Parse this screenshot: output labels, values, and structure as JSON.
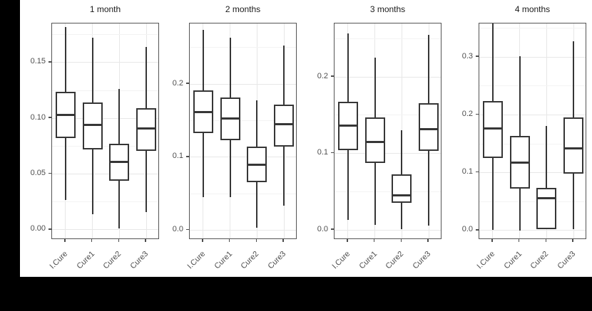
{
  "figure": {
    "outer_background": "#000000",
    "panel_background": "#ffffff",
    "panel_border_color": "#555555",
    "box_stroke_color": "#363636",
    "grid_major_color": "#e7e7e7",
    "grid_minor_color": "#f3f3f3",
    "axis_text_color": "#4d4d4d",
    "title_color": "#1a1a1a"
  },
  "chart_data": [
    {
      "type": "boxplot",
      "title": "1 month",
      "categories": [
        "I.Cure",
        "Cure1",
        "Cure2",
        "Cure3"
      ],
      "ytick_values": [
        0.0,
        0.05,
        0.1,
        0.15
      ],
      "ytick_labels": [
        "0.00",
        "0.05",
        "0.10",
        "0.15"
      ],
      "minor_ticks": [
        0.025,
        0.075,
        0.125,
        0.175
      ],
      "ylim": [
        -0.009,
        0.185
      ],
      "grid": true,
      "boxes": [
        {
          "category": "I.Cure",
          "whisker_low": 0.027,
          "q1": 0.082,
          "median": 0.103,
          "q3": 0.124,
          "whisker_high": 0.182
        },
        {
          "category": "Cure1",
          "whisker_low": 0.014,
          "q1": 0.072,
          "median": 0.094,
          "q3": 0.114,
          "whisker_high": 0.172
        },
        {
          "category": "Cure2",
          "whisker_low": 0.001,
          "q1": 0.044,
          "median": 0.061,
          "q3": 0.077,
          "whisker_high": 0.126
        },
        {
          "category": "Cure3",
          "whisker_low": 0.016,
          "q1": 0.071,
          "median": 0.091,
          "q3": 0.109,
          "whisker_high": 0.164
        }
      ]
    },
    {
      "type": "boxplot",
      "title": "2 months",
      "categories": [
        "I.Cure",
        "Cure1",
        "Cure2",
        "Cure3"
      ],
      "ytick_values": [
        0.0,
        0.1,
        0.2
      ],
      "ytick_labels": [
        "0.0",
        "0.1",
        "0.2"
      ],
      "minor_ticks": [
        0.05,
        0.15,
        0.25
      ],
      "ylim": [
        -0.013,
        0.283
      ],
      "grid": true,
      "boxes": [
        {
          "category": "I.Cure",
          "whisker_low": 0.045,
          "q1": 0.133,
          "median": 0.162,
          "q3": 0.191,
          "whisker_high": 0.274
        },
        {
          "category": "Cure1",
          "whisker_low": 0.045,
          "q1": 0.123,
          "median": 0.153,
          "q3": 0.182,
          "whisker_high": 0.264
        },
        {
          "category": "Cure2",
          "whisker_low": 0.004,
          "q1": 0.066,
          "median": 0.09,
          "q3": 0.115,
          "whisker_high": 0.178
        },
        {
          "category": "Cure3",
          "whisker_low": 0.034,
          "q1": 0.115,
          "median": 0.145,
          "q3": 0.172,
          "whisker_high": 0.253
        }
      ]
    },
    {
      "type": "boxplot",
      "title": "3 months",
      "categories": [
        "I.Cure",
        "Cure1",
        "Cure2",
        "Cure3"
      ],
      "ytick_values": [
        0.0,
        0.1,
        0.2
      ],
      "ytick_labels": [
        "0.0",
        "0.1",
        "0.2"
      ],
      "minor_ticks": [
        0.05,
        0.15,
        0.25
      ],
      "ylim": [
        -0.013,
        0.27
      ],
      "grid": true,
      "boxes": [
        {
          "category": "I.Cure",
          "whisker_low": 0.013,
          "q1": 0.104,
          "median": 0.136,
          "q3": 0.168,
          "whisker_high": 0.257
        },
        {
          "category": "Cure1",
          "whisker_low": 0.007,
          "q1": 0.088,
          "median": 0.115,
          "q3": 0.147,
          "whisker_high": 0.225
        },
        {
          "category": "Cure2",
          "whisker_low": 0.001,
          "q1": 0.035,
          "median": 0.045,
          "q3": 0.073,
          "whisker_high": 0.13
        },
        {
          "category": "Cure3",
          "whisker_low": 0.006,
          "q1": 0.103,
          "median": 0.132,
          "q3": 0.166,
          "whisker_high": 0.255
        }
      ]
    },
    {
      "type": "boxplot",
      "title": "4 months",
      "categories": [
        "I.Cure",
        "Cure1",
        "Cure2",
        "Cure3"
      ],
      "ytick_values": [
        0.0,
        0.1,
        0.2,
        0.3
      ],
      "ytick_labels": [
        "0.0",
        "0.1",
        "0.2",
        "0.3"
      ],
      "minor_ticks": [
        0.05,
        0.15,
        0.25,
        0.35
      ],
      "ylim": [
        -0.016,
        0.358
      ],
      "grid": true,
      "boxes": [
        {
          "category": "I.Cure",
          "whisker_low": 0.001,
          "q1": 0.126,
          "median": 0.176,
          "q3": 0.224,
          "whisker_high": 0.358
        },
        {
          "category": "Cure1",
          "whisker_low": 0.0,
          "q1": 0.072,
          "median": 0.117,
          "q3": 0.164,
          "whisker_high": 0.301
        },
        {
          "category": "Cure2",
          "whisker_low": 0.002,
          "q1": 0.003,
          "median": 0.056,
          "q3": 0.074,
          "whisker_high": 0.181
        },
        {
          "category": "Cure3",
          "whisker_low": 0.002,
          "q1": 0.099,
          "median": 0.142,
          "q3": 0.196,
          "whisker_high": 0.327
        }
      ]
    }
  ]
}
